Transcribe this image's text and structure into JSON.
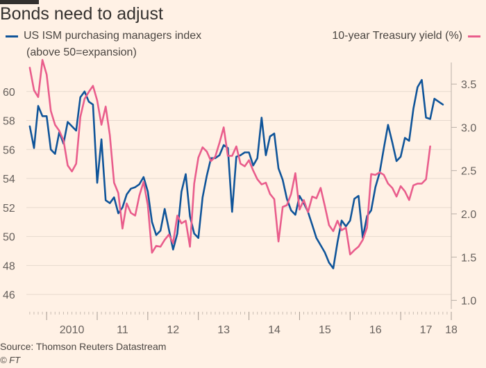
{
  "title": "Bonds need to adjust",
  "legend": {
    "left_label": "US ISM purchasing managers index",
    "left_sub": "(above 50=expansion)",
    "right_label": "10-year Treasury yield (%)"
  },
  "source": "Source: Thomson Reuters Datastream",
  "credit": "© FT",
  "colors": {
    "background": "#fff1e5",
    "ism": "#0f5499",
    "yield": "#e95d8c",
    "grid": "#e6d9ce",
    "text": "#66605c"
  },
  "chart_data": {
    "type": "line",
    "title": "Bonds need to adjust",
    "x_range": [
      2009.6,
      2018.0
    ],
    "x_tick_values": [
      2010,
      2011,
      2012,
      2013,
      2014,
      2015,
      2016,
      2017,
      2018
    ],
    "x_tick_labels": [
      "2010",
      "11",
      "12",
      "13",
      "14",
      "15",
      "16",
      "17",
      "18"
    ],
    "y_left": {
      "label": "US ISM purchasing managers index",
      "range": [
        45,
        62
      ],
      "ticks": [
        46,
        48,
        50,
        52,
        54,
        56,
        58,
        60
      ]
    },
    "y_right": {
      "label": "10-year Treasury yield (%)",
      "range": [
        0.9,
        3.75
      ],
      "ticks": [
        1.0,
        1.5,
        2.0,
        2.5,
        3.0,
        3.5
      ],
      "tick_labels": [
        "1.0",
        "1.5",
        "2.0",
        "2.5",
        "3.0",
        "3.5"
      ]
    },
    "grid": true,
    "legend_position": "top",
    "series": [
      {
        "name": "US ISM purchasing managers index",
        "axis": "left",
        "x_start": 2009.667,
        "x_step": 0.08333,
        "values": [
          57.6,
          56.1,
          59,
          58.3,
          58.3,
          56,
          55.7,
          57.2,
          56.4,
          57.9,
          57.6,
          57.3,
          59.6,
          60,
          59.3,
          59.1,
          53.7,
          56.7,
          52.5,
          52.3,
          52.7,
          51.6,
          52,
          52.9,
          53.3,
          53.4,
          53.6,
          54.1,
          53.1,
          51,
          50.1,
          50.4,
          51.9,
          50.5,
          49.1,
          50.2,
          53.1,
          54.3,
          51.4,
          50.2,
          49.9,
          52.7,
          54.2,
          55.4,
          55.4,
          55.6,
          56.3,
          56.1,
          51.7,
          55.5,
          55.6,
          55.8,
          55.8,
          54.9,
          55.4,
          58.2,
          55.6,
          56.9,
          57.1,
          54.7,
          53.9,
          52.6,
          51.8,
          51.5,
          52.8,
          52.3,
          51.7,
          50.8,
          49.9,
          49.4,
          48.9,
          48.2,
          47.8,
          49.6,
          51.1,
          50.7,
          51.1,
          52.6,
          52.8,
          49.9,
          51.4,
          51.8,
          53.4,
          54.4,
          56.1,
          57.7,
          56.5,
          55.2,
          55.5,
          56.8,
          56.6,
          58.8,
          60.3,
          60.8,
          58.2,
          58.1,
          59.5,
          59.3,
          59.1
        ]
      },
      {
        "name": "10-year Treasury yield (%)",
        "axis": "right",
        "x_start": 2009.667,
        "x_step": 0.08333,
        "values": [
          3.69,
          3.43,
          3.35,
          3.78,
          3.61,
          3.19,
          3.03,
          2.96,
          2.85,
          2.56,
          2.49,
          2.58,
          3.12,
          3.33,
          3.41,
          3.48,
          3.31,
          3.03,
          3.24,
          2.91,
          2.36,
          2.24,
          1.83,
          2.12,
          2.01,
          1.98,
          2.21,
          2.37,
          2.1,
          1.55,
          1.63,
          1.62,
          1.7,
          1.76,
          1.66,
          1.98,
          1.89,
          1.92,
          1.62,
          2.35,
          2.65,
          2.77,
          2.72,
          2.61,
          2.66,
          2.82,
          3.0,
          2.67,
          2.67,
          2.78,
          2.58,
          2.55,
          2.62,
          2.5,
          2.4,
          2.34,
          2.36,
          2.23,
          2.17,
          1.68,
          2.08,
          2.1,
          2.23,
          2.47,
          2.05,
          2.16,
          2.02,
          2.2,
          2.18,
          2.3,
          2.09,
          1.87,
          1.8,
          1.92,
          1.81,
          1.84,
          1.53,
          1.58,
          1.62,
          1.7,
          1.84,
          2.46,
          2.45,
          2.48,
          2.45,
          2.35,
          2.3,
          2.2,
          2.32,
          2.26,
          2.16,
          2.33,
          2.35,
          2.35,
          2.4,
          2.78
        ]
      }
    ]
  }
}
